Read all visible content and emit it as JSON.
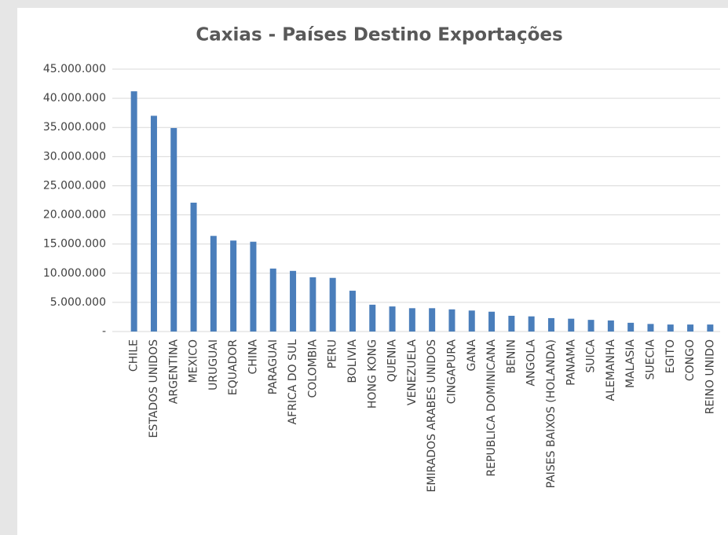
{
  "chart_data": {
    "type": "bar",
    "title": "Caxias - Países Destino Exportações",
    "categories": [
      "CHILE",
      "ESTADOS UNIDOS",
      "ARGENTINA",
      "MEXICO",
      "URUGUAI",
      "EQUADOR",
      "CHINA",
      "PARAGUAI",
      "AFRICA DO SUL",
      "COLOMBIA",
      "PERU",
      "BOLIVIA",
      "HONG KONG",
      "QUENIA",
      "VENEZUELA",
      "EMIRADOS ARABES UNIDOS",
      "CINGAPURA",
      "GANA",
      "REPUBLICA DOMINICANA",
      "BENIN",
      "ANGOLA",
      "PAISES BAIXOS (HOLANDA)",
      "PANAMA",
      "SUICA",
      "ALEMANHA",
      "MALASIA",
      "SUECIA",
      "EGITO",
      "CONGO",
      "REINO UNIDO"
    ],
    "values": [
      41200000,
      37000000,
      34900000,
      22100000,
      16400000,
      15600000,
      15400000,
      10800000,
      10400000,
      9300000,
      9200000,
      7000000,
      4600000,
      4300000,
      4000000,
      4000000,
      3800000,
      3600000,
      3400000,
      2700000,
      2600000,
      2300000,
      2200000,
      2000000,
      1900000,
      1500000,
      1300000,
      1200000,
      1200000,
      1200000
    ],
    "color": "#4a7ebb",
    "ylim": [
      0,
      45000000
    ],
    "yticks": [
      {
        "value": 0,
        "label": "-"
      },
      {
        "value": 5000000,
        "label": "5.000.000"
      },
      {
        "value": 10000000,
        "label": "10.000.000"
      },
      {
        "value": 15000000,
        "label": "15.000.000"
      },
      {
        "value": 20000000,
        "label": "20.000.000"
      },
      {
        "value": 25000000,
        "label": "25.000.000"
      },
      {
        "value": 30000000,
        "label": "30.000.000"
      },
      {
        "value": 35000000,
        "label": "35.000.000"
      },
      {
        "value": 40000000,
        "label": "40.000.000"
      },
      {
        "value": 45000000,
        "label": "45.000.000"
      }
    ],
    "grid": true
  }
}
